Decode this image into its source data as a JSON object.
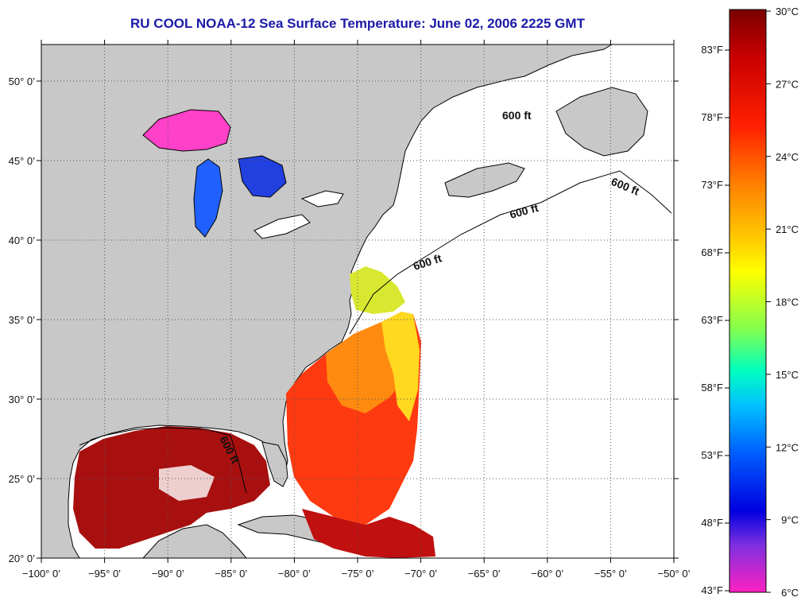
{
  "title": "RU COOL  NOAA-12  Sea Surface Temperature:  June 02, 2006 2225 GMT",
  "map": {
    "lon_range": [
      -100,
      -50
    ],
    "lat_range": [
      20,
      52.3
    ],
    "lon_ticks": [
      {
        "value": -100,
        "label": "−100° 0’"
      },
      {
        "value": -95,
        "label": "−95° 0’"
      },
      {
        "value": -90,
        "label": "−90° 0’"
      },
      {
        "value": -85,
        "label": "−85° 0’"
      },
      {
        "value": -80,
        "label": "−80° 0’"
      },
      {
        "value": -75,
        "label": "−75° 0’"
      },
      {
        "value": -70,
        "label": "−70° 0’"
      },
      {
        "value": -65,
        "label": "−65° 0’"
      },
      {
        "value": -60,
        "label": "−60° 0’"
      },
      {
        "value": -55,
        "label": "−55° 0’"
      },
      {
        "value": -50,
        "label": "−50° 0’"
      }
    ],
    "lat_ticks": [
      {
        "value": 20,
        "label": "20° 0’"
      },
      {
        "value": 25,
        "label": "25° 0’"
      },
      {
        "value": 30,
        "label": "30° 0’"
      },
      {
        "value": 35,
        "label": "35° 0’"
      },
      {
        "value": 40,
        "label": "40° 0’"
      },
      {
        "value": 45,
        "label": "45° 0’"
      },
      {
        "value": 50,
        "label": "50° 0’"
      }
    ],
    "contour_labels": [
      "600 ft",
      "600 ft",
      "600 ft",
      "600 ft",
      "600 ft"
    ],
    "colors": {
      "land": "#c8c8c8",
      "no_data": "#ffffff",
      "grid": "#555555"
    }
  },
  "colorbar": {
    "celsius": [
      "30°C",
      "27°C",
      "24°C",
      "21°C",
      "18°C",
      "15°C",
      "12°C",
      "9°C",
      "6°C"
    ],
    "fahrenheit": [
      "83°F",
      "78°F",
      "73°F",
      "68°F",
      "63°F",
      "58°F",
      "53°F",
      "48°F",
      "43°F"
    ],
    "celsius_range": [
      6,
      30
    ],
    "gradient": [
      "#7a0000",
      "#c80000",
      "#ff2000",
      "#ff8000",
      "#ffd000",
      "#ffff00",
      "#80ff50",
      "#00ffc0",
      "#00c0ff",
      "#0060ff",
      "#0000e0",
      "#8030e0",
      "#ff20c0"
    ]
  }
}
